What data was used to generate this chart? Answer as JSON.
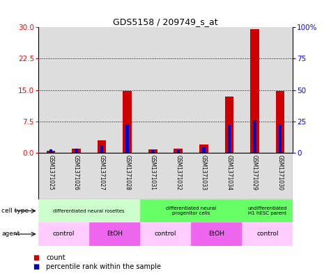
{
  "title": "GDS5158 / 209749_s_at",
  "samples": [
    "GSM1371025",
    "GSM1371026",
    "GSM1371027",
    "GSM1371028",
    "GSM1371031",
    "GSM1371032",
    "GSM1371033",
    "GSM1371034",
    "GSM1371029",
    "GSM1371030"
  ],
  "count_values": [
    0.5,
    1.0,
    3.0,
    14.8,
    0.8,
    1.0,
    2.0,
    13.5,
    29.5,
    14.7
  ],
  "percentile_values": [
    3.0,
    3.5,
    5.5,
    22.5,
    2.5,
    2.5,
    4.5,
    22.0,
    26.0,
    22.0
  ],
  "ylim_left": [
    0,
    30
  ],
  "ylim_right": [
    0,
    100
  ],
  "yticks_left": [
    0,
    7.5,
    15,
    22.5,
    30
  ],
  "yticks_right": [
    0,
    25,
    50,
    75,
    100
  ],
  "bar_color": "#cc0000",
  "percentile_color": "#0000cc",
  "bar_width": 0.35,
  "percentile_bar_width": 0.12,
  "cell_type_groups": [
    {
      "label": "differentiated neural rosettes",
      "start": 0,
      "end": 3,
      "color": "#ccffcc"
    },
    {
      "label": "differentiated neural\nprogenitor cells",
      "start": 4,
      "end": 7,
      "color": "#66ff66"
    },
    {
      "label": "undifferentiated\nH1 hESC parent",
      "start": 8,
      "end": 9,
      "color": "#66ff66"
    }
  ],
  "agent_groups": [
    {
      "label": "control",
      "start": 0,
      "end": 1,
      "color": "#ffccff"
    },
    {
      "label": "EtOH",
      "start": 2,
      "end": 3,
      "color": "#ee66ee"
    },
    {
      "label": "control",
      "start": 4,
      "end": 5,
      "color": "#ffccff"
    },
    {
      "label": "EtOH",
      "start": 6,
      "end": 7,
      "color": "#ee66ee"
    },
    {
      "label": "control",
      "start": 8,
      "end": 9,
      "color": "#ffccff"
    }
  ],
  "legend_count_label": "count",
  "legend_percentile_label": "percentile rank within the sample",
  "cell_type_label": "cell type",
  "agent_label": "agent",
  "bg_color": "#dddddd",
  "plot_bg": "#ffffff"
}
